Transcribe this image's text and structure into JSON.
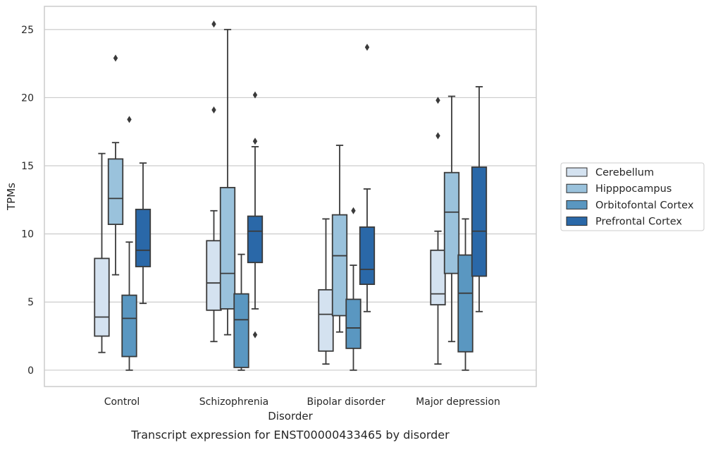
{
  "chart_data": {
    "type": "box",
    "title": "",
    "caption": "Transcript expression for ENST00000433465 by disorder",
    "xlabel": "Disorder",
    "ylabel": "TPMs",
    "categories": [
      "Control",
      "Schizophrenia",
      "Bipolar disorder",
      "Major depression"
    ],
    "ylim": [
      -1.2,
      26.7
    ],
    "yticks": [
      0,
      5,
      10,
      15,
      20,
      25
    ],
    "grid": true,
    "legend_position": "right",
    "series": [
      {
        "name": "Cerebellum",
        "color": "#d4e2f0",
        "boxes": [
          {
            "whisker_low": 1.3,
            "q1": 2.5,
            "median": 3.9,
            "q3": 8.2,
            "whisker_high": 15.9,
            "outliers": []
          },
          {
            "whisker_low": 2.1,
            "q1": 4.4,
            "median": 6.4,
            "q3": 9.5,
            "whisker_high": 11.7,
            "outliers": [
              19.1,
              25.4
            ]
          },
          {
            "whisker_low": 0.45,
            "q1": 1.4,
            "median": 4.1,
            "q3": 5.9,
            "whisker_high": 11.1,
            "outliers": []
          },
          {
            "whisker_low": 0.45,
            "q1": 4.8,
            "median": 5.6,
            "q3": 8.8,
            "whisker_high": 10.2,
            "outliers": [
              17.2,
              19.8
            ]
          }
        ]
      },
      {
        "name": "Hipppocampus",
        "color": "#9ac2dc",
        "boxes": [
          {
            "whisker_low": 7.0,
            "q1": 10.7,
            "median": 12.6,
            "q3": 15.5,
            "whisker_high": 16.7,
            "outliers": [
              22.9
            ]
          },
          {
            "whisker_low": 2.6,
            "q1": 4.5,
            "median": 7.1,
            "q3": 13.4,
            "whisker_high": 25.0,
            "outliers": []
          },
          {
            "whisker_low": 2.8,
            "q1": 4.0,
            "median": 8.4,
            "q3": 11.4,
            "whisker_high": 16.5,
            "outliers": []
          },
          {
            "whisker_low": 2.1,
            "q1": 7.1,
            "median": 11.6,
            "q3": 14.5,
            "whisker_high": 20.1,
            "outliers": []
          }
        ]
      },
      {
        "name": "Orbitofontal Cortex",
        "color": "#5a97c1",
        "boxes": [
          {
            "whisker_low": 0.0,
            "q1": 1.0,
            "median": 3.8,
            "q3": 5.5,
            "whisker_high": 9.4,
            "outliers": [
              18.4
            ]
          },
          {
            "whisker_low": 0.0,
            "q1": 0.2,
            "median": 3.7,
            "q3": 5.6,
            "whisker_high": 8.5,
            "outliers": []
          },
          {
            "whisker_low": 0.0,
            "q1": 1.6,
            "median": 3.1,
            "q3": 5.2,
            "whisker_high": 7.7,
            "outliers": [
              11.7
            ]
          },
          {
            "whisker_low": 0.0,
            "q1": 1.35,
            "median": 5.65,
            "q3": 8.45,
            "whisker_high": 11.1,
            "outliers": []
          }
        ]
      },
      {
        "name": "Prefrontal Cortex",
        "color": "#2a68a8",
        "boxes": [
          {
            "whisker_low": 4.9,
            "q1": 7.6,
            "median": 8.8,
            "q3": 11.8,
            "whisker_high": 15.2,
            "outliers": []
          },
          {
            "whisker_low": 4.5,
            "q1": 7.9,
            "median": 10.2,
            "q3": 11.3,
            "whisker_high": 16.4,
            "outliers": [
              2.6,
              16.8,
              20.2
            ]
          },
          {
            "whisker_low": 4.3,
            "q1": 6.3,
            "median": 7.4,
            "q3": 10.5,
            "whisker_high": 13.3,
            "outliers": [
              23.7
            ]
          },
          {
            "whisker_low": 4.3,
            "q1": 6.9,
            "median": 10.2,
            "q3": 14.9,
            "whisker_high": 20.8,
            "outliers": []
          }
        ]
      }
    ]
  }
}
